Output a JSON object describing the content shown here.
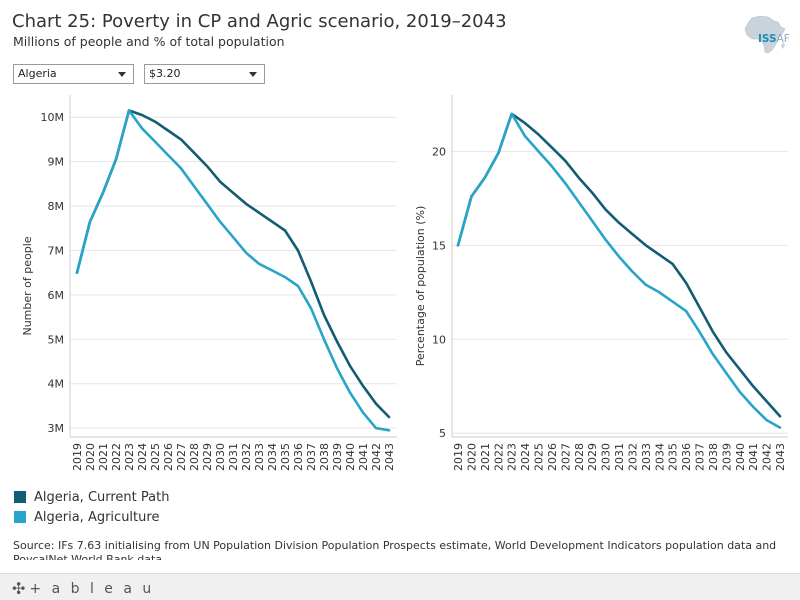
{
  "header": {
    "title": "Chart 25: Poverty in CP and Agric scenario, 2019–2043",
    "subtitle": "Millions of people and % of total population",
    "logo_text_a": "ISS",
    "logo_text_b": "AF"
  },
  "filters": {
    "country": "Algeria",
    "threshold": "$3.20"
  },
  "colors": {
    "current_path": "#135c73",
    "agriculture": "#28a4c9",
    "axis": "#cccccc",
    "grid": "#e6e6e6",
    "text": "#333333"
  },
  "chart_data": [
    {
      "type": "line",
      "ylabel": "Number of people",
      "xlabel": "",
      "ylim": [
        2.8,
        10.5
      ],
      "yticks": [
        3,
        4,
        5,
        6,
        7,
        8,
        9,
        10
      ],
      "ytick_labels": [
        "3M",
        "4M",
        "5M",
        "6M",
        "7M",
        "8M",
        "9M",
        "10M"
      ],
      "x": [
        "2019",
        "2020",
        "2021",
        "2022",
        "2023",
        "2024",
        "2025",
        "2026",
        "2027",
        "2028",
        "2029",
        "2030",
        "2031",
        "2032",
        "2033",
        "2034",
        "2035",
        "2036",
        "2037",
        "2038",
        "2039",
        "2040",
        "2041",
        "2042",
        "2043"
      ],
      "series": [
        {
          "name": "Algeria, Current Path",
          "color_key": "current_path",
          "values": [
            6.5,
            7.65,
            8.3,
            9.05,
            10.15,
            10.05,
            9.9,
            9.7,
            9.5,
            9.2,
            8.9,
            8.55,
            8.3,
            8.05,
            7.85,
            7.65,
            7.45,
            7.0,
            6.3,
            5.55,
            4.95,
            4.4,
            3.95,
            3.55,
            3.25
          ]
        },
        {
          "name": "Algeria, Agriculture",
          "color_key": "agriculture",
          "values": [
            6.5,
            7.65,
            8.3,
            9.05,
            10.15,
            9.75,
            9.45,
            9.15,
            8.85,
            8.45,
            8.05,
            7.65,
            7.3,
            6.95,
            6.7,
            6.55,
            6.4,
            6.2,
            5.7,
            5.0,
            4.35,
            3.8,
            3.35,
            3.0,
            2.95
          ]
        }
      ]
    },
    {
      "type": "line",
      "ylabel": "Percentage of population (%)",
      "xlabel": "",
      "ylim": [
        4.8,
        23
      ],
      "yticks": [
        5,
        10,
        15,
        20
      ],
      "ytick_labels": [
        "5",
        "10",
        "15",
        "20"
      ],
      "x": [
        "2019",
        "2020",
        "2021",
        "2022",
        "2023",
        "2024",
        "2025",
        "2026",
        "2027",
        "2028",
        "2029",
        "2030",
        "2031",
        "2032",
        "2033",
        "2034",
        "2035",
        "2036",
        "2037",
        "2038",
        "2039",
        "2040",
        "2041",
        "2042",
        "2043"
      ],
      "series": [
        {
          "name": "Algeria, Current Path",
          "color_key": "current_path",
          "values": [
            15.0,
            17.6,
            18.6,
            19.9,
            22.0,
            21.5,
            20.9,
            20.2,
            19.5,
            18.6,
            17.8,
            16.9,
            16.2,
            15.6,
            15.0,
            14.5,
            14.0,
            13.0,
            11.7,
            10.4,
            9.3,
            8.4,
            7.5,
            6.7,
            5.9
          ]
        },
        {
          "name": "Algeria, Agriculture",
          "color_key": "agriculture",
          "values": [
            15.0,
            17.6,
            18.6,
            19.9,
            22.0,
            20.8,
            20.0,
            19.2,
            18.3,
            17.3,
            16.3,
            15.3,
            14.4,
            13.6,
            12.9,
            12.5,
            12.0,
            11.5,
            10.4,
            9.2,
            8.2,
            7.2,
            6.4,
            5.7,
            5.3
          ]
        }
      ]
    }
  ],
  "legend": {
    "items": [
      {
        "label": "Algeria, Current Path",
        "color_key": "current_path"
      },
      {
        "label": "Algeria, Agriculture",
        "color_key": "agriculture"
      }
    ]
  },
  "source": "Source: IFs 7.63 initialising from UN Population Division Population Prospects estimate, World Development Indicators population data and PovcalNet World Bank data",
  "footer": {
    "brand": "+ a b l e a u"
  }
}
